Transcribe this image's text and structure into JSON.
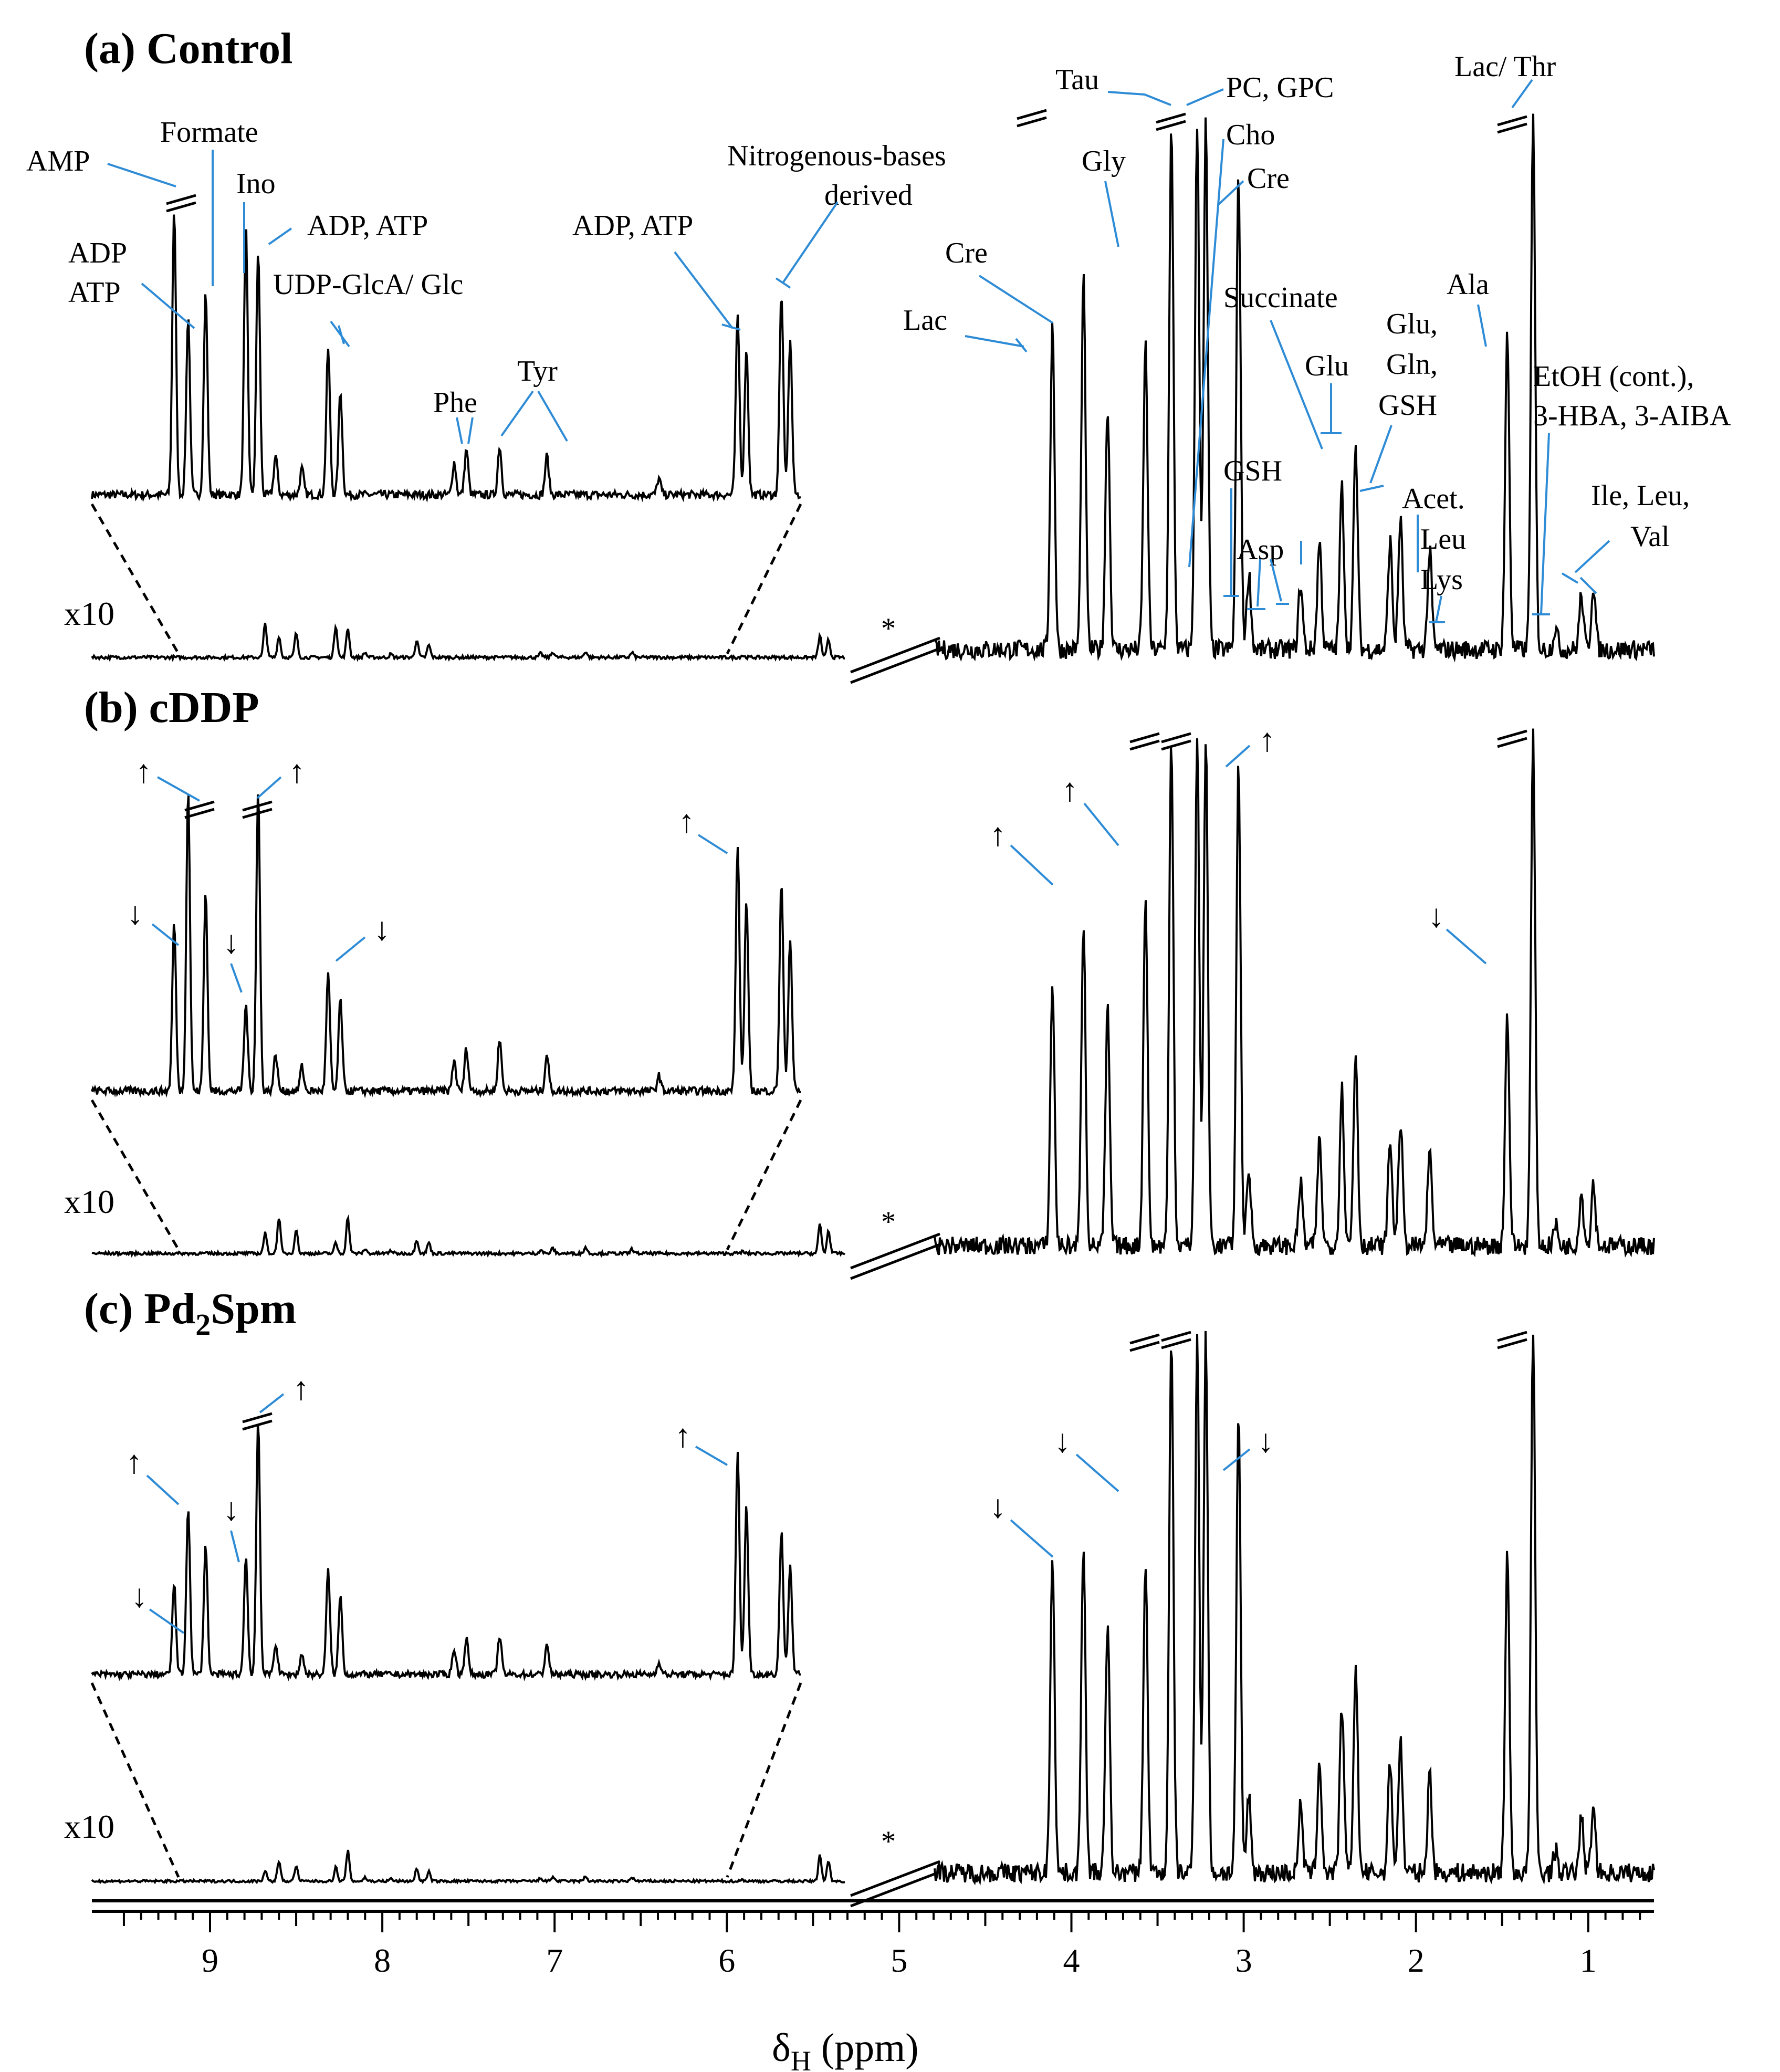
{
  "chart_data": {
    "type": "line",
    "xlabel_main": "δ",
    "xlabel_sub": "H",
    "xlabel_unit": " (ppm)",
    "x_axis": {
      "range": [
        9.5,
        0.5
      ],
      "reversed": true,
      "break_between": [
        5.2,
        4.6
      ],
      "ticks": [
        {
          "v": 9,
          "t": "9"
        },
        {
          "v": 8,
          "t": "8"
        },
        {
          "v": 7,
          "t": "7"
        },
        {
          "v": 6,
          "t": "6"
        },
        {
          "v": 5,
          "t": "5"
        },
        {
          "v": 4,
          "t": "4"
        },
        {
          "v": 3,
          "t": "3"
        },
        {
          "v": 2,
          "t": "2"
        },
        {
          "v": 1,
          "t": "1"
        }
      ]
    },
    "magnification_label": "x10",
    "solvent_mark": "*",
    "panels": [
      {
        "title": "(a) Control",
        "inset_peaks": [
          [
            9.03,
            0.88
          ],
          [
            8.95,
            0.55
          ],
          [
            8.85,
            0.62
          ],
          [
            8.62,
            0.82
          ],
          [
            8.55,
            0.75
          ],
          [
            8.45,
            0.12
          ],
          [
            8.3,
            0.08
          ],
          [
            8.15,
            0.45
          ],
          [
            8.08,
            0.32
          ],
          [
            7.43,
            0.1
          ],
          [
            7.36,
            0.14
          ],
          [
            7.17,
            0.15
          ],
          [
            6.9,
            0.12
          ],
          [
            6.26,
            0.05
          ],
          [
            5.81,
            0.55
          ],
          [
            5.76,
            0.45
          ],
          [
            5.56,
            0.62
          ],
          [
            5.51,
            0.48
          ]
        ],
        "main_peaks": [
          [
            4.11,
            0.6
          ],
          [
            3.93,
            0.68
          ],
          [
            3.79,
            0.45
          ],
          [
            3.57,
            0.56
          ],
          [
            3.42,
            0.96
          ],
          [
            3.27,
            0.97
          ],
          [
            3.22,
            0.97
          ],
          [
            3.03,
            0.88
          ],
          [
            2.97,
            0.14
          ],
          [
            2.67,
            0.12
          ],
          [
            2.56,
            0.2
          ],
          [
            2.43,
            0.3
          ],
          [
            2.35,
            0.37
          ],
          [
            2.15,
            0.2
          ],
          [
            2.09,
            0.24
          ],
          [
            1.92,
            0.18
          ],
          [
            1.47,
            0.58
          ],
          [
            1.32,
            0.97
          ],
          [
            1.19,
            0.04
          ],
          [
            1.04,
            0.1
          ],
          [
            0.97,
            0.12
          ]
        ],
        "annotations": [
          "AMP",
          "Formate",
          "Ino",
          "ADP, ATP",
          "ADP",
          "ATP",
          "UDP-GlcA/ Glc",
          "Phe",
          "Tyr",
          "ADP, ATP",
          "Nitrogenous-bases",
          "derived",
          "Tau",
          "PC, GPC",
          "Cho",
          "Cre",
          "Gly",
          "Cre",
          "Lac",
          "Lac/ Thr",
          "Ala",
          "Succinate",
          "Glu",
          "Glu,",
          "Gln,",
          "GSH",
          "GSH",
          "Asp",
          "Acet.",
          "Leu",
          "Lys",
          "EtOH (cont.),",
          "3-HBA, 3-AIBA",
          "Ile, Leu,",
          "Val"
        ]
      },
      {
        "title": "(b) cDDP",
        "inset_peaks": [
          [
            9.03,
            0.55
          ],
          [
            8.95,
            0.98
          ],
          [
            8.85,
            0.65
          ],
          [
            8.62,
            0.28
          ],
          [
            8.55,
            0.98
          ],
          [
            8.45,
            0.12
          ],
          [
            8.3,
            0.08
          ],
          [
            8.15,
            0.38
          ],
          [
            8.08,
            0.3
          ],
          [
            7.43,
            0.1
          ],
          [
            7.36,
            0.14
          ],
          [
            7.17,
            0.17
          ],
          [
            6.9,
            0.12
          ],
          [
            6.26,
            0.05
          ],
          [
            5.81,
            0.8
          ],
          [
            5.76,
            0.62
          ],
          [
            5.56,
            0.68
          ],
          [
            5.51,
            0.5
          ]
        ],
        "main_peaks": [
          [
            4.11,
            0.5
          ],
          [
            3.93,
            0.62
          ],
          [
            3.79,
            0.45
          ],
          [
            3.57,
            0.67
          ],
          [
            3.42,
            0.97
          ],
          [
            3.27,
            0.97
          ],
          [
            3.22,
            0.97
          ],
          [
            3.03,
            0.92
          ],
          [
            2.97,
            0.14
          ],
          [
            2.67,
            0.12
          ],
          [
            2.56,
            0.2
          ],
          [
            2.43,
            0.3
          ],
          [
            2.35,
            0.37
          ],
          [
            2.15,
            0.2
          ],
          [
            2.09,
            0.24
          ],
          [
            1.92,
            0.18
          ],
          [
            1.47,
            0.44
          ],
          [
            1.32,
            0.97
          ],
          [
            1.19,
            0.04
          ],
          [
            1.04,
            0.1
          ],
          [
            0.97,
            0.12
          ]
        ],
        "arrows": [
          "↑",
          "↑",
          "↓",
          "↓",
          "↓",
          "↑",
          "↑",
          "↑",
          "↑",
          "↓"
        ]
      },
      {
        "title": "(c) Pd",
        "title_sub": "2",
        "title_end": "Spm",
        "inset_peaks": [
          [
            9.03,
            0.35
          ],
          [
            8.95,
            0.65
          ],
          [
            8.85,
            0.5
          ],
          [
            8.62,
            0.45
          ],
          [
            8.55,
            0.98
          ],
          [
            8.45,
            0.12
          ],
          [
            8.3,
            0.08
          ],
          [
            8.15,
            0.4
          ],
          [
            8.08,
            0.3
          ],
          [
            7.43,
            0.1
          ],
          [
            7.36,
            0.14
          ],
          [
            7.17,
            0.15
          ],
          [
            6.9,
            0.12
          ],
          [
            6.26,
            0.05
          ],
          [
            5.81,
            0.85
          ],
          [
            5.76,
            0.65
          ],
          [
            5.56,
            0.55
          ],
          [
            5.51,
            0.42
          ]
        ],
        "main_peaks": [
          [
            4.11,
            0.58
          ],
          [
            3.93,
            0.6
          ],
          [
            3.79,
            0.45
          ],
          [
            3.57,
            0.56
          ],
          [
            3.42,
            0.96
          ],
          [
            3.27,
            0.97
          ],
          [
            3.22,
            0.97
          ],
          [
            3.03,
            0.82
          ],
          [
            2.97,
            0.14
          ],
          [
            2.67,
            0.12
          ],
          [
            2.56,
            0.2
          ],
          [
            2.43,
            0.3
          ],
          [
            2.35,
            0.37
          ],
          [
            2.15,
            0.2
          ],
          [
            2.09,
            0.24
          ],
          [
            1.92,
            0.18
          ],
          [
            1.47,
            0.58
          ],
          [
            1.32,
            0.97
          ],
          [
            1.19,
            0.04
          ],
          [
            1.04,
            0.1
          ],
          [
            0.97,
            0.12
          ]
        ],
        "arrows": [
          "↑",
          "↑",
          "↓",
          "↓",
          "↑",
          "↓",
          "↓",
          "↓"
        ]
      }
    ]
  }
}
